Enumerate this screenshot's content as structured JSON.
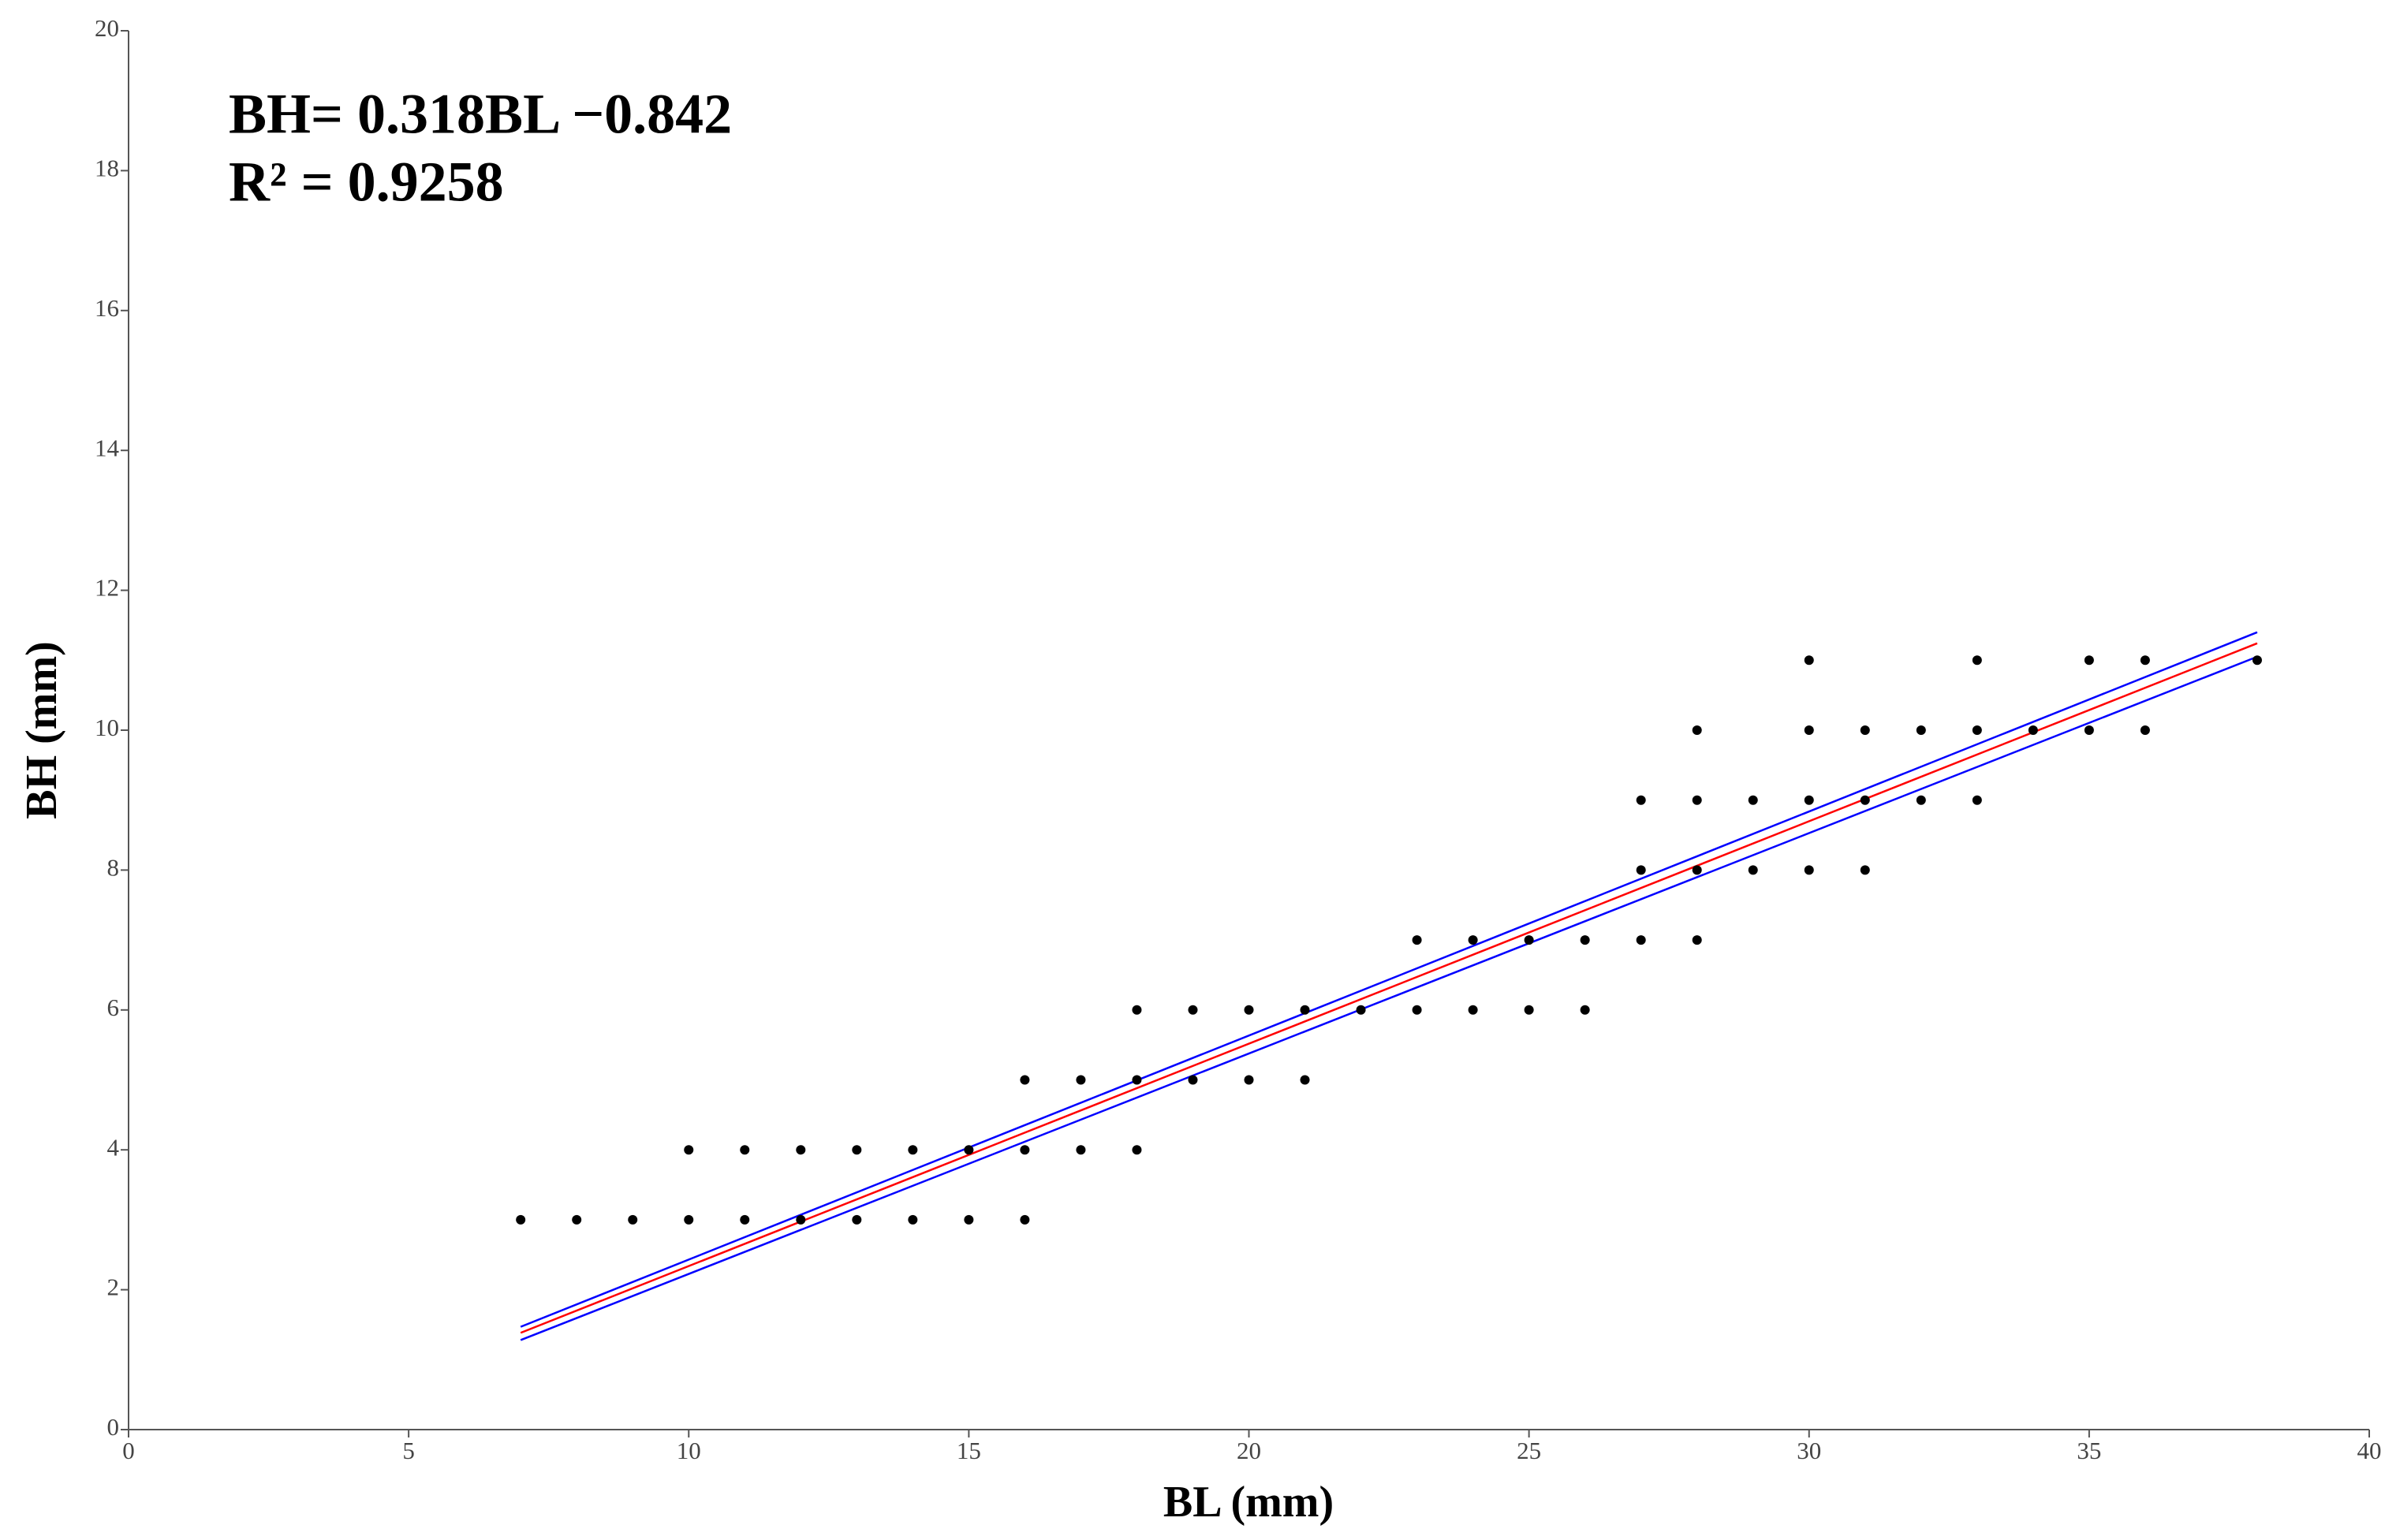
{
  "chart_data": {
    "type": "scatter",
    "x": [
      7,
      8,
      9,
      10,
      11,
      12,
      13,
      14,
      15,
      16,
      10,
      11,
      12,
      13,
      14,
      15,
      16,
      17,
      18,
      16,
      17,
      18,
      19,
      20,
      21,
      18,
      19,
      20,
      21,
      22,
      23,
      24,
      25,
      26,
      23,
      24,
      25,
      26,
      27,
      28,
      27,
      28,
      29,
      30,
      31,
      27,
      28,
      29,
      30,
      31,
      32,
      33,
      28,
      30,
      31,
      32,
      33,
      34,
      35,
      36,
      30,
      33,
      35,
      36,
      38
    ],
    "values": [
      3,
      3,
      3,
      3,
      3,
      3,
      3,
      3,
      3,
      3,
      4,
      4,
      4,
      4,
      4,
      4,
      4,
      4,
      4,
      5,
      5,
      5,
      5,
      5,
      5,
      6,
      6,
      6,
      6,
      6,
      6,
      6,
      6,
      6,
      7,
      7,
      7,
      7,
      7,
      7,
      8,
      8,
      8,
      8,
      8,
      9,
      9,
      9,
      9,
      9,
      9,
      9,
      10,
      10,
      10,
      10,
      10,
      10,
      10,
      10,
      11,
      11,
      11,
      11,
      11
    ],
    "color": "#000000",
    "fit_lines": [
      {
        "color": "#0000ff",
        "x": [
          7,
          38
        ],
        "values": [
          1.47,
          11.4
        ]
      },
      {
        "color": "#0000ff",
        "x": [
          7,
          38
        ],
        "values": [
          1.28,
          11.05
        ]
      },
      {
        "color": "#ff0000",
        "x": [
          7,
          38
        ],
        "values": [
          1.384,
          11.242
        ]
      }
    ],
    "annotations": [
      "BH= 0.318BL −0.842",
      "R² = 0.9258"
    ],
    "x_label": "BL (mm)",
    "y_label": "BH (mm)",
    "xlim": [
      0,
      40
    ],
    "xticks": [
      0,
      5,
      10,
      15,
      20,
      25,
      30,
      35,
      40
    ],
    "ylim": [
      0,
      20
    ],
    "yticks": [
      0,
      2,
      4,
      6,
      8,
      10,
      12,
      14,
      16,
      18,
      20
    ],
    "grid": false
  }
}
